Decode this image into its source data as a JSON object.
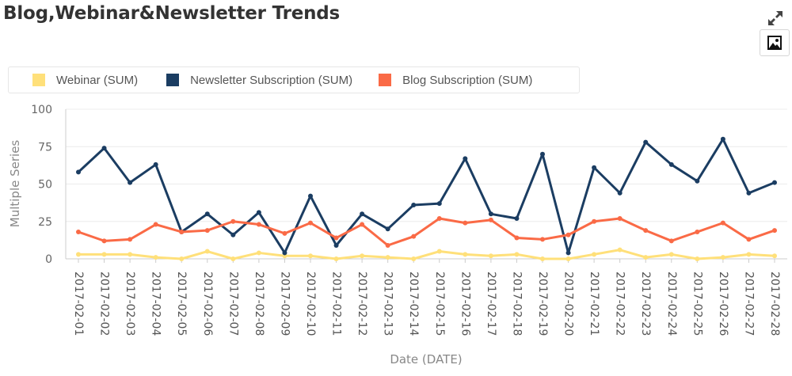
{
  "title": "Blog,Webinar&Newsletter Trends",
  "icons": {
    "expand": "expand-icon",
    "image": "image-icon"
  },
  "legend": [
    {
      "label": "Webinar (SUM)",
      "color": "#ffe07a"
    },
    {
      "label": "Newsletter Subscription (SUM)",
      "color": "#1b3d62"
    },
    {
      "label": "Blog Subscription (SUM)",
      "color": "#fa6a46"
    }
  ],
  "chart_data": {
    "type": "line",
    "title": "Blog,Webinar&Newsletter Trends",
    "xlabel": "Date (DATE)",
    "ylabel": "Multiple Series",
    "ylim": [
      0,
      100
    ],
    "yticks": [
      0,
      25,
      50,
      75,
      100
    ],
    "grid": true,
    "legend_position": "top",
    "categories": [
      "2017-02-01",
      "2017-02-02",
      "2017-02-03",
      "2017-02-04",
      "2017-02-05",
      "2017-02-06",
      "2017-02-07",
      "2017-02-08",
      "2017-02-09",
      "2017-02-10",
      "2017-02-11",
      "2017-02-12",
      "2017-02-13",
      "2017-02-14",
      "2017-02-15",
      "2017-02-16",
      "2017-02-17",
      "2017-02-18",
      "2017-02-19",
      "2017-02-20",
      "2017-02-21",
      "2017-02-22",
      "2017-02-23",
      "2017-02-24",
      "2017-02-25",
      "2017-02-26",
      "2017-02-27",
      "2017-02-28"
    ],
    "series": [
      {
        "name": "Webinar (SUM)",
        "color": "#ffe07a",
        "values": [
          3,
          3,
          3,
          1,
          0,
          5,
          0,
          4,
          2,
          2,
          0,
          2,
          1,
          0,
          5,
          3,
          2,
          3,
          0,
          0,
          3,
          6,
          1,
          3,
          0,
          1,
          3,
          2
        ]
      },
      {
        "name": "Newsletter Subscription (SUM)",
        "color": "#1b3d62",
        "values": [
          58,
          74,
          51,
          63,
          18,
          30,
          16,
          31,
          4,
          42,
          9,
          30,
          20,
          36,
          37,
          67,
          30,
          27,
          70,
          4,
          61,
          44,
          78,
          63,
          52,
          80,
          44,
          51
        ]
      },
      {
        "name": "Blog Subscription (SUM)",
        "color": "#fa6a46",
        "values": [
          18,
          12,
          13,
          23,
          18,
          19,
          25,
          23,
          17,
          24,
          14,
          23,
          9,
          15,
          27,
          24,
          26,
          14,
          13,
          16,
          25,
          27,
          19,
          12,
          18,
          24,
          13,
          19
        ]
      }
    ]
  }
}
